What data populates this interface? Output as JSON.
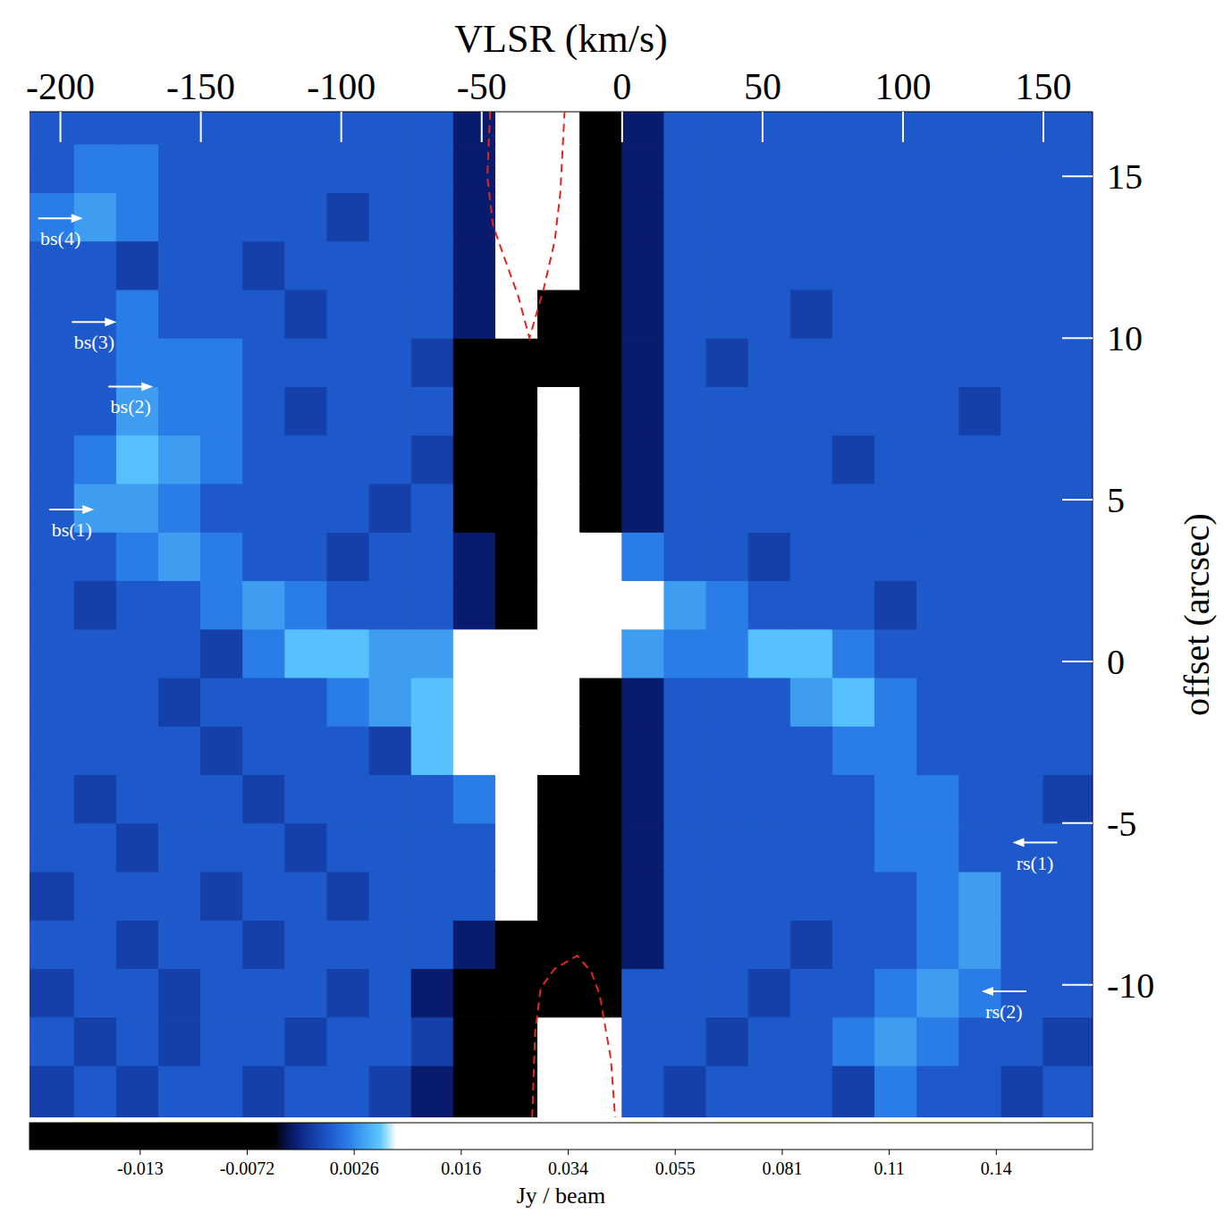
{
  "chart_data": {
    "type": "heatmap",
    "x_label": "VLSR (km/s)",
    "y_label": "offset (arcsec)",
    "xlim": [
      -211,
      167.5
    ],
    "xticks": [
      -200,
      -150,
      -100,
      -50,
      0,
      50,
      100,
      150
    ],
    "ylim": [
      -14.1,
      17
    ],
    "yticks": [
      -10,
      -5,
      0,
      5,
      10,
      15
    ],
    "x_edges": [
      -211,
      -195,
      -180,
      -165,
      -150,
      -135,
      -120,
      -105,
      -90,
      -75,
      -60,
      -45,
      -30,
      -15,
      0,
      15,
      30,
      45,
      60,
      75,
      90,
      105,
      120,
      135,
      150,
      167.5
    ],
    "y_edges": [
      -14.1,
      -12.5,
      -11,
      -9.5,
      -8,
      -6.5,
      -5,
      -3.5,
      -2,
      -0.5,
      1,
      2.5,
      4,
      5.5,
      7,
      8.5,
      10,
      11.5,
      13,
      14.5,
      16,
      17
    ],
    "cells": [
      [
        -0.001,
        0.0003,
        -0.001,
        0.0003,
        0.0003,
        -0.001,
        0.0003,
        0.0003,
        -0.001,
        -0.003,
        -0.02,
        -0.02,
        0.06,
        0.06,
        0.0003,
        -0.001,
        0.0003,
        0.0003,
        0.0003,
        -0.001,
        0.002,
        0.0003,
        0.0003,
        -0.001,
        0.0003
      ],
      [
        0.0003,
        -0.001,
        0.0003,
        -0.001,
        0.0003,
        0.0003,
        -0.001,
        0.0003,
        0.0003,
        -0.001,
        -0.02,
        -0.02,
        0.06,
        0.06,
        0.0003,
        0.0003,
        -0.001,
        0.0003,
        0.0003,
        0.002,
        0.0035,
        0.002,
        0.0003,
        0.0003,
        -0.001
      ],
      [
        -0.001,
        0.0003,
        0.0003,
        -0.001,
        0.0003,
        0.0003,
        0.0003,
        -0.001,
        0.0003,
        -0.003,
        -0.02,
        -0.02,
        -0.02,
        -0.02,
        0.0003,
        0.0003,
        0.0003,
        -0.001,
        0.0003,
        0.0003,
        0.002,
        0.0035,
        0.002,
        0.0003,
        0.0003
      ],
      [
        0.0003,
        0.0003,
        -0.001,
        0.0003,
        0.0003,
        -0.001,
        0.0003,
        0.0003,
        0.0003,
        0.0003,
        -0.003,
        -0.02,
        -0.02,
        -0.02,
        -0.003,
        0.0003,
        0.0003,
        0.0003,
        -0.001,
        0.0003,
        0.0003,
        0.002,
        0.0035,
        0.0003,
        0.0003
      ],
      [
        -0.001,
        0.0003,
        0.0003,
        0.0003,
        -0.001,
        0.0003,
        0.0003,
        -0.001,
        0.0003,
        0.0003,
        0.0003,
        0.06,
        -0.02,
        -0.02,
        -0.003,
        0.0003,
        0.0003,
        0.0003,
        0.0003,
        0.0003,
        0.0003,
        0.002,
        0.0035,
        0.0003,
        0.0003
      ],
      [
        0.0003,
        0.0003,
        -0.001,
        0.0003,
        0.0003,
        0.0003,
        -0.001,
        0.0003,
        0.0003,
        0.0003,
        0.0003,
        0.06,
        -0.02,
        -0.02,
        -0.003,
        0.0003,
        0.0003,
        0.0003,
        0.0003,
        0.0003,
        0.002,
        0.002,
        0.0003,
        0.0003,
        0.0003
      ],
      [
        0.0003,
        -0.001,
        0.0003,
        0.0003,
        0.0003,
        -0.001,
        0.0003,
        0.0003,
        0.0003,
        0.0003,
        0.002,
        0.06,
        -0.02,
        -0.02,
        -0.003,
        0.0003,
        0.0003,
        0.0003,
        0.0003,
        0.0003,
        0.002,
        0.002,
        0.0003,
        0.0003,
        -0.001
      ],
      [
        0.0003,
        0.0003,
        0.0003,
        0.0003,
        -0.001,
        0.0003,
        0.0003,
        0.0003,
        -0.001,
        0.0055,
        0.06,
        0.06,
        0.06,
        -0.02,
        -0.003,
        0.0003,
        0.0003,
        0.0003,
        0.0003,
        0.002,
        0.002,
        0.0003,
        0.0003,
        0.0003,
        0.0003
      ],
      [
        0.0003,
        0.0003,
        0.0003,
        -0.001,
        0.0003,
        0.0003,
        0.0003,
        0.002,
        0.0035,
        0.0055,
        0.06,
        0.06,
        0.06,
        -0.02,
        -0.003,
        0.0003,
        0.0003,
        0.0003,
        0.0035,
        0.0055,
        0.002,
        0.0003,
        0.0003,
        0.0003,
        0.0003
      ],
      [
        0.0003,
        0.0003,
        0.0003,
        0.0003,
        -0.001,
        0.002,
        0.0055,
        0.0055,
        0.0035,
        0.0035,
        0.06,
        0.06,
        0.06,
        0.06,
        0.0035,
        0.002,
        0.002,
        0.0055,
        0.0055,
        0.002,
        0.0003,
        0.0003,
        0.0003,
        0.0003,
        0.0003
      ],
      [
        0.0003,
        -0.001,
        0.0003,
        0.0003,
        0.002,
        0.0035,
        0.002,
        0.0003,
        0.0003,
        0.0003,
        -0.003,
        -0.02,
        0.06,
        0.06,
        0.06,
        0.0035,
        0.002,
        0.0003,
        0.0003,
        0.0003,
        -0.001,
        0.0003,
        0.0003,
        0.0003,
        0.0003
      ],
      [
        0.0003,
        0.0003,
        0.002,
        0.0035,
        0.002,
        0.0003,
        0.0003,
        -0.001,
        0.0003,
        0.0003,
        -0.003,
        -0.02,
        0.06,
        0.06,
        0.002,
        0.0003,
        0.0003,
        -0.001,
        0.0003,
        0.0003,
        0.0003,
        0.0003,
        0.0003,
        0.0003,
        0.0003
      ],
      [
        0.0003,
        0.0035,
        0.0035,
        0.002,
        0.0003,
        0.0003,
        0.0003,
        0.0003,
        -0.001,
        0.0003,
        -0.02,
        -0.02,
        0.06,
        -0.02,
        -0.003,
        0.0003,
        0.0003,
        0.0003,
        0.0003,
        0.0003,
        0.0003,
        0.0003,
        0.0003,
        0.0003,
        0.0003
      ],
      [
        0.0003,
        0.002,
        0.0055,
        0.0035,
        0.002,
        0.0003,
        0.0003,
        0.0003,
        0.0003,
        -0.001,
        -0.02,
        -0.02,
        0.06,
        -0.02,
        -0.003,
        0.0003,
        0.0003,
        0.0003,
        0.0003,
        -0.001,
        0.0003,
        0.0003,
        0.0003,
        0.0003,
        0.0003
      ],
      [
        0.0003,
        0.0003,
        0.0035,
        0.002,
        0.002,
        0.0003,
        -0.001,
        0.0003,
        0.0003,
        0.0003,
        -0.02,
        -0.02,
        0.06,
        -0.02,
        -0.003,
        0.0003,
        0.0003,
        0.0003,
        0.0003,
        0.0003,
        0.0003,
        0.0003,
        -0.001,
        0.0003,
        0.0003
      ],
      [
        0.0003,
        0.0003,
        0.002,
        0.002,
        0.002,
        0.0003,
        0.0003,
        0.0003,
        0.0003,
        -0.001,
        -0.02,
        -0.02,
        -0.02,
        -0.02,
        -0.003,
        0.0003,
        -0.001,
        0.0003,
        0.0003,
        0.0003,
        0.0003,
        0.0003,
        0.0003,
        0.0003,
        0.0003
      ],
      [
        0.0003,
        0.0003,
        0.002,
        0.0003,
        0.0003,
        0.0003,
        -0.001,
        0.0003,
        0.0003,
        0.0003,
        -0.003,
        0.06,
        -0.02,
        -0.02,
        -0.003,
        0.0003,
        0.0003,
        0.0003,
        -0.001,
        0.0003,
        0.0003,
        0.0003,
        0.0003,
        0.0003,
        0.0003
      ],
      [
        0.0003,
        0.0003,
        -0.001,
        0.0003,
        0.0003,
        -0.001,
        0.0003,
        0.0003,
        0.0003,
        0.0003,
        -0.003,
        0.06,
        0.06,
        -0.02,
        -0.003,
        0.0003,
        0.0003,
        0.0003,
        0.0003,
        0.0003,
        0.0003,
        0.0003,
        0.0003,
        0.0003,
        0.0003
      ],
      [
        0.002,
        0.0035,
        0.002,
        0.0003,
        0.0003,
        0.0003,
        0.0003,
        -0.001,
        0.0003,
        0.0003,
        -0.003,
        0.06,
        0.06,
        -0.02,
        -0.003,
        0.0003,
        0.0003,
        0.0003,
        0.0003,
        0.0003,
        0.0003,
        0.0003,
        0.0003,
        0.0003,
        0.0003
      ],
      [
        0.0003,
        0.002,
        0.002,
        0.0003,
        0.0003,
        0.0003,
        0.0003,
        0.0003,
        0.0003,
        0.0003,
        -0.003,
        0.06,
        0.06,
        -0.02,
        -0.003,
        0.0003,
        0.0003,
        0.0003,
        0.0003,
        0.0003,
        0.0003,
        0.0003,
        0.0003,
        0.0003,
        0.0003
      ],
      [
        0.0003,
        0.0003,
        0.0003,
        0.0003,
        0.0003,
        0.0003,
        0.0003,
        0.0003,
        0.0003,
        0.0003,
        -0.003,
        0.06,
        0.06,
        -0.02,
        -0.003,
        0.0003,
        0.0003,
        0.0003,
        0.0003,
        0.0003,
        0.0003,
        0.0003,
        0.0003,
        0.0003,
        0.0003
      ]
    ],
    "colorbar": {
      "range": [
        -0.019,
        0.167
      ],
      "ticks": [
        -0.013,
        -0.0072,
        0.0026,
        0.016,
        0.034,
        0.055,
        0.081,
        0.11,
        0.14
      ],
      "label": "Jy / beam"
    },
    "annotations": [
      {
        "text": "bs(1)",
        "x": -188,
        "y": 4.7
      },
      {
        "text": "bs(2)",
        "x": -167,
        "y": 8.5
      },
      {
        "text": "bs(3)",
        "x": -180,
        "y": 10.5
      },
      {
        "text": "bs(4)",
        "x": -192,
        "y": 13.7
      },
      {
        "text": "rs(1)",
        "x": 139,
        "y": -5.6
      },
      {
        "text": "rs(2)",
        "x": 128,
        "y": -10.2
      }
    ],
    "curves": [
      {
        "color": "#e3261c",
        "line_style": "dashed",
        "x": [
          -47,
          -48,
          -46,
          -42,
          -37,
          -33,
          -28,
          -24,
          -22,
          -20.5
        ],
        "y": [
          17,
          15,
          13.5,
          12.5,
          11.3,
          10,
          11.5,
          13,
          14.5,
          17
        ]
      },
      {
        "color": "#e3261c",
        "line_style": "dashed",
        "x": [
          -32,
          -31,
          -29,
          -24,
          -16,
          -11,
          -8,
          -4,
          -2.5
        ],
        "y": [
          -14.1,
          -11.5,
          -10.1,
          -9.5,
          -9.1,
          -9.6,
          -10.3,
          -12.3,
          -14.1
        ]
      }
    ]
  }
}
